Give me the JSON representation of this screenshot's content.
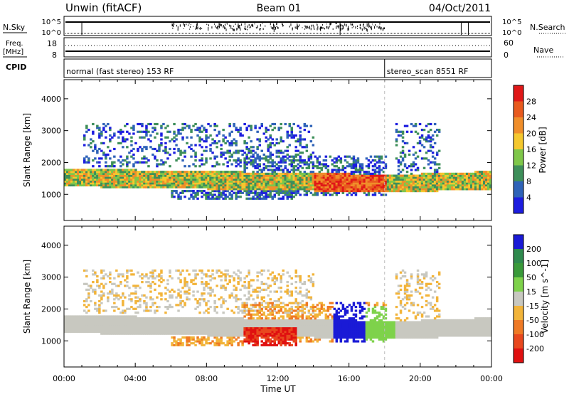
{
  "header": {
    "station": "Unwin (fitACF)",
    "beam": "Beam 01",
    "date": "04/Oct/2011"
  },
  "noise_panel": {
    "left_label": "N.Sky",
    "right_label": "N.Search",
    "left_ticks": [
      "10^5",
      "10^0"
    ],
    "right_ticks": [
      "10^5",
      "10^0"
    ]
  },
  "freq_panel": {
    "left_label_line1": "Freq.",
    "left_label_line2": "[MHz]",
    "right_label": "Nave",
    "left_ticks": [
      "18",
      "8"
    ],
    "right_ticks": [
      "60",
      "0"
    ]
  },
  "cpid_panel": {
    "label": "CPID",
    "segments": [
      {
        "start_hour": 0.0,
        "end_hour": 18.0,
        "text": "normal (fast stereo) 153 RF"
      },
      {
        "start_hour": 18.0,
        "end_hour": 24.0,
        "text": "stereo_scan 8551 RF"
      }
    ]
  },
  "time_axis": {
    "label": "Time UT",
    "ticks": [
      "00:00",
      "04:00",
      "08:00",
      "12:00",
      "16:00",
      "20:00",
      "00:00"
    ],
    "start_hour": 0,
    "end_hour": 24
  },
  "chart_data": [
    {
      "type": "heatmap",
      "name": "power-panel",
      "ylabel": "Slant Range [km]",
      "y_ticks": [
        1000,
        2000,
        3000,
        4000
      ],
      "ylim": [
        180,
        4600
      ],
      "colorbar": {
        "label": "Power [dB]",
        "ticks": [
          "4",
          "8",
          "12",
          "16",
          "20",
          "24",
          "28"
        ],
        "colors": [
          "#1d1de0",
          "#2f63b8",
          "#3e8f5a",
          "#7fc74a",
          "#f5c82e",
          "#f08e2a",
          "#e85a1e",
          "#e01818"
        ]
      }
    },
    {
      "type": "heatmap",
      "name": "velocity-panel",
      "ylabel": "Slant Range [km]",
      "y_ticks": [
        1000,
        2000,
        3000,
        4000
      ],
      "ylim": [
        180,
        4600
      ],
      "colorbar": {
        "label": "Velocity [m s^-1]",
        "ticks": [
          "200",
          "100",
          "50",
          "15",
          "-15",
          "-50",
          "-100",
          "-200"
        ],
        "colors": [
          "#1a1ad6",
          "#2f8a4e",
          "#3a9a3a",
          "#7ed24b",
          "#c8c8c0",
          "#f2b43a",
          "#ef7a25",
          "#e8481e",
          "#e01010"
        ]
      }
    }
  ]
}
